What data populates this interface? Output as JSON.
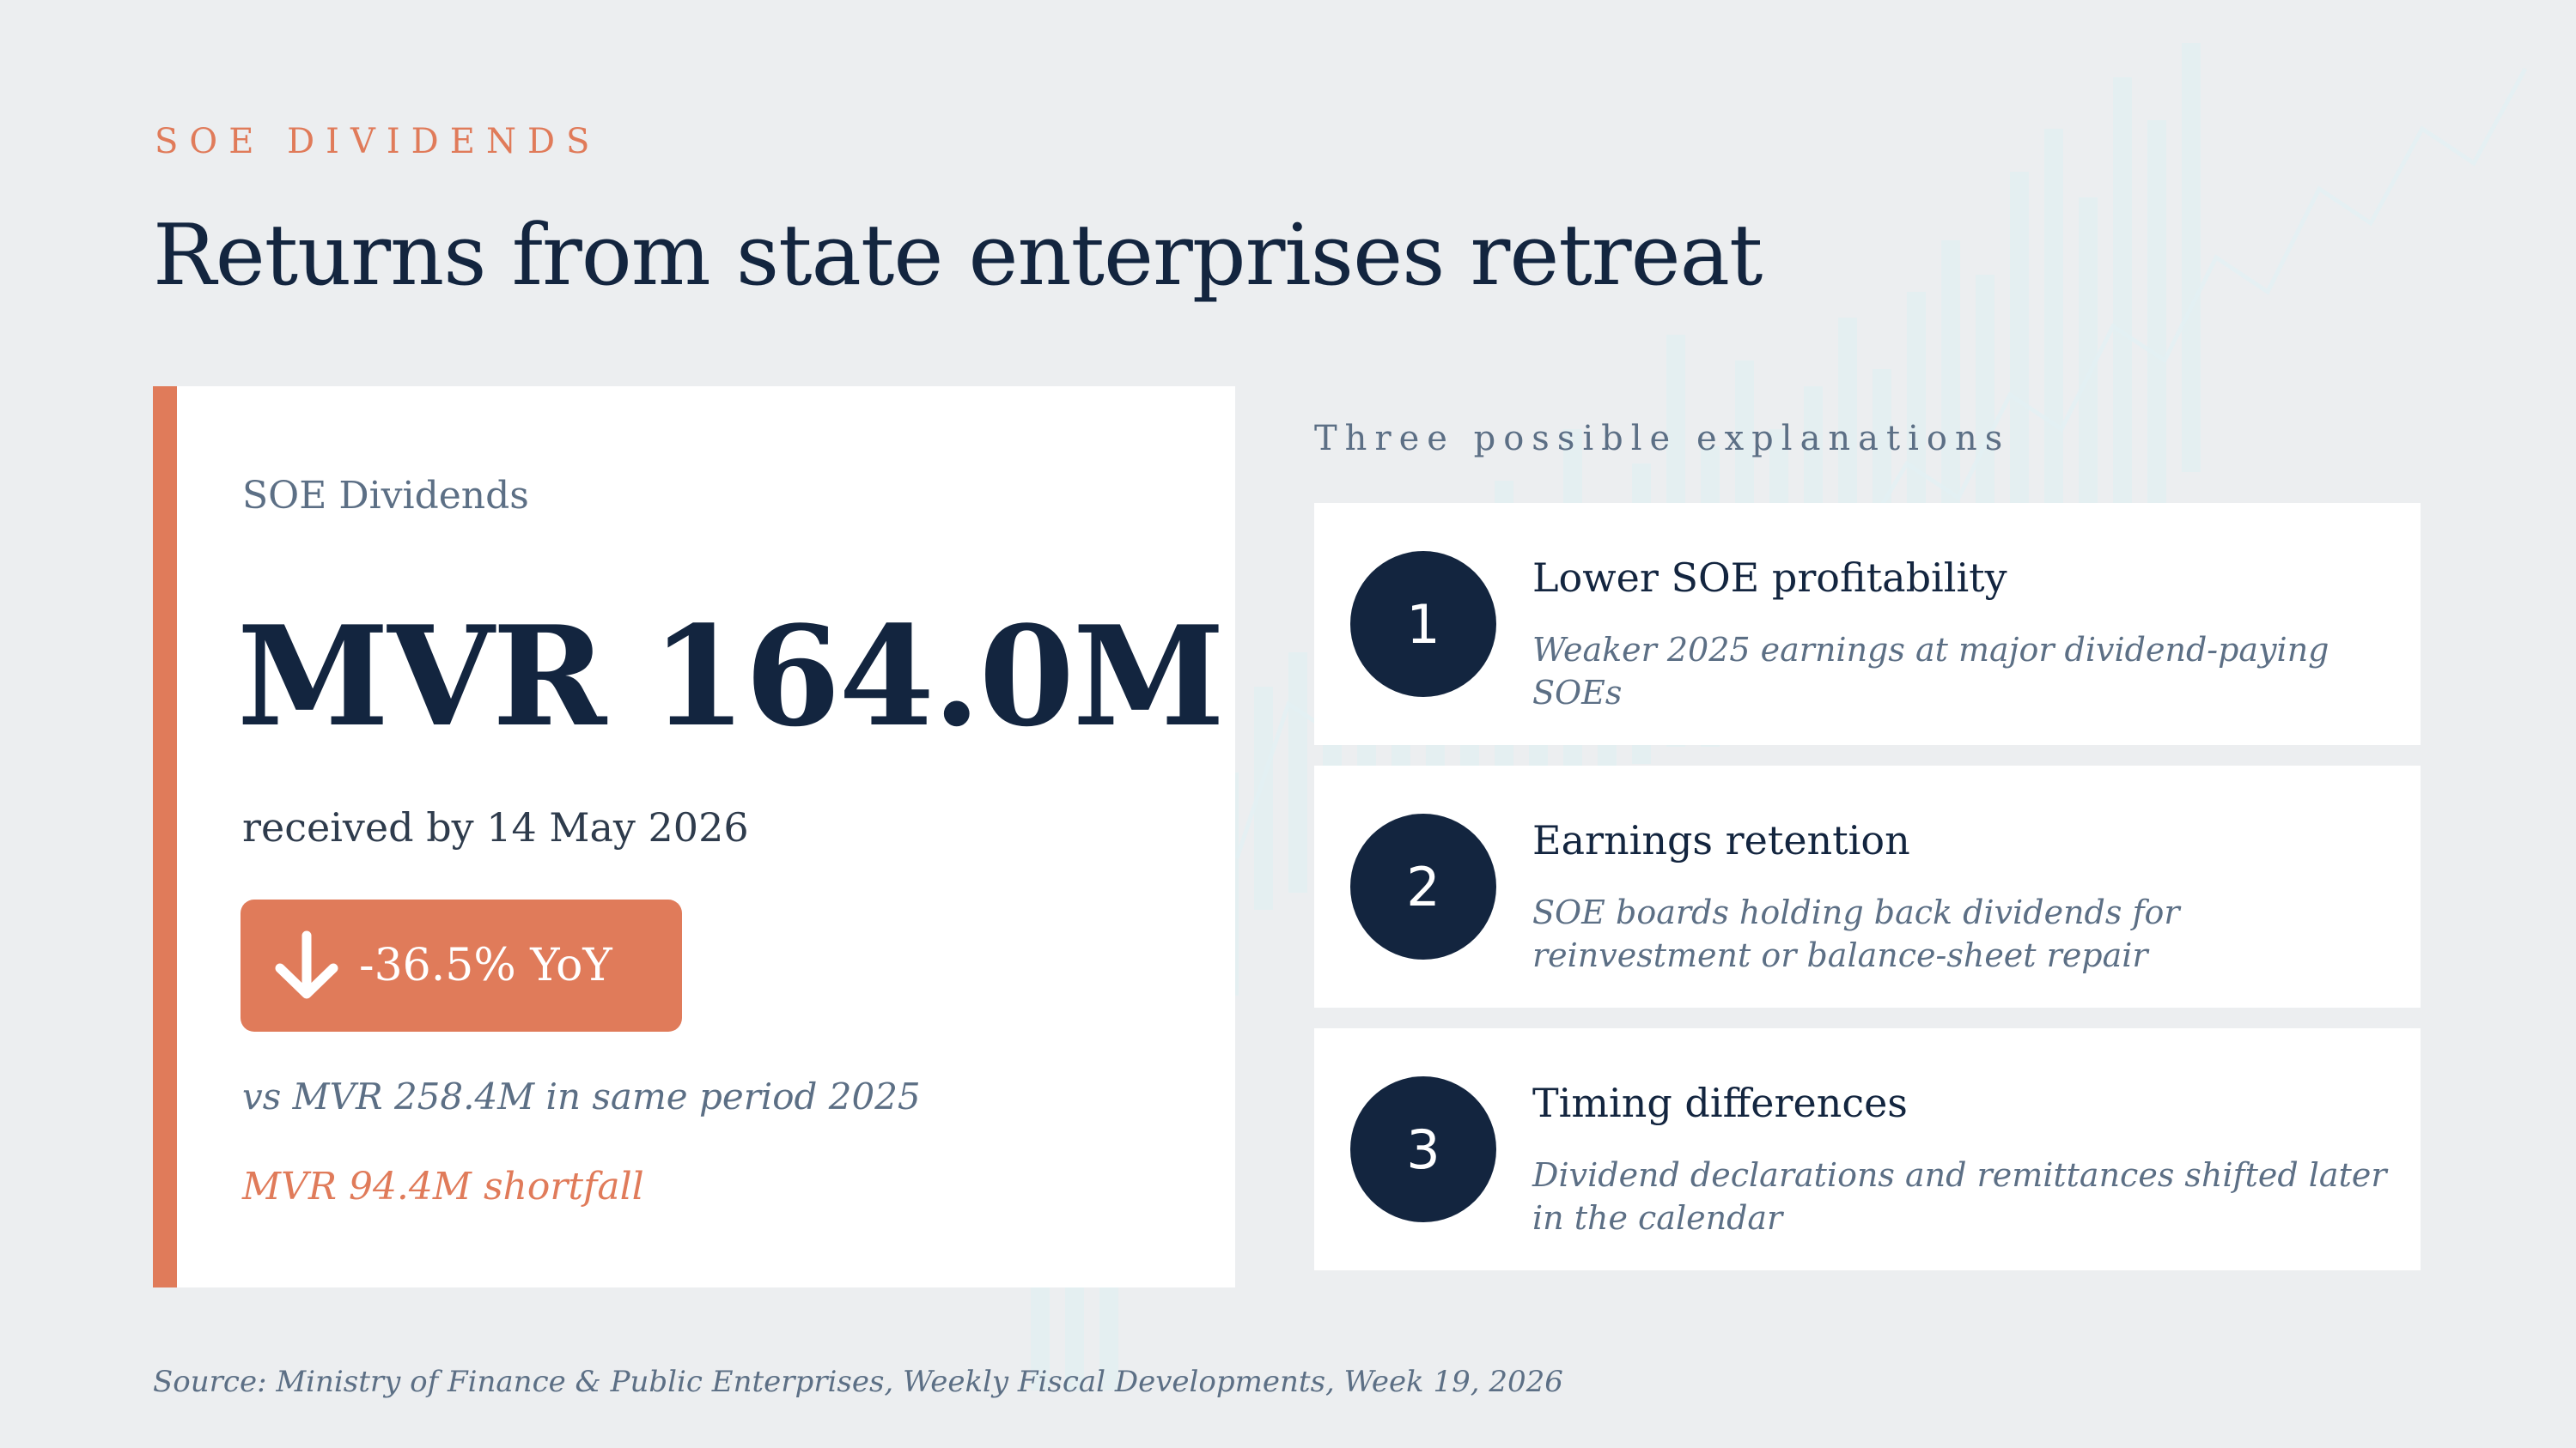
{
  "kicker": "SOE DIVIDENDS",
  "title": "Returns from state enterprises retreat",
  "kpi": {
    "label": "SOE Dividends",
    "value": "MVR 164.0M",
    "date_text": "received by 14 May 2026",
    "change_text": "-36.5% YoY",
    "change_icon": "arrow-down-icon",
    "comparison_text": "vs MVR 258.4M in same period 2025",
    "shortfall_text": "MVR 94.4M shortfall"
  },
  "explanations": {
    "heading": "Three possible explanations",
    "items": [
      {
        "number": "1",
        "title": "Lower SOE profitability",
        "description": "Weaker 2025 earnings at major dividend-paying SOEs"
      },
      {
        "number": "2",
        "title": "Earnings retention",
        "description": "SOE boards holding back dividends for reinvestment or balance-sheet repair"
      },
      {
        "number": "3",
        "title": "Timing differences",
        "description": "Dividend declarations and remittances shifted later in the calendar"
      }
    ]
  },
  "source": "Source: Ministry of Finance & Public Enterprises, Weekly Fiscal Developments, Week 19, 2026",
  "colors": {
    "accent": "#e07b5a",
    "navy": "#13253f",
    "muted": "#5c6f85",
    "background": "#eceef0"
  }
}
